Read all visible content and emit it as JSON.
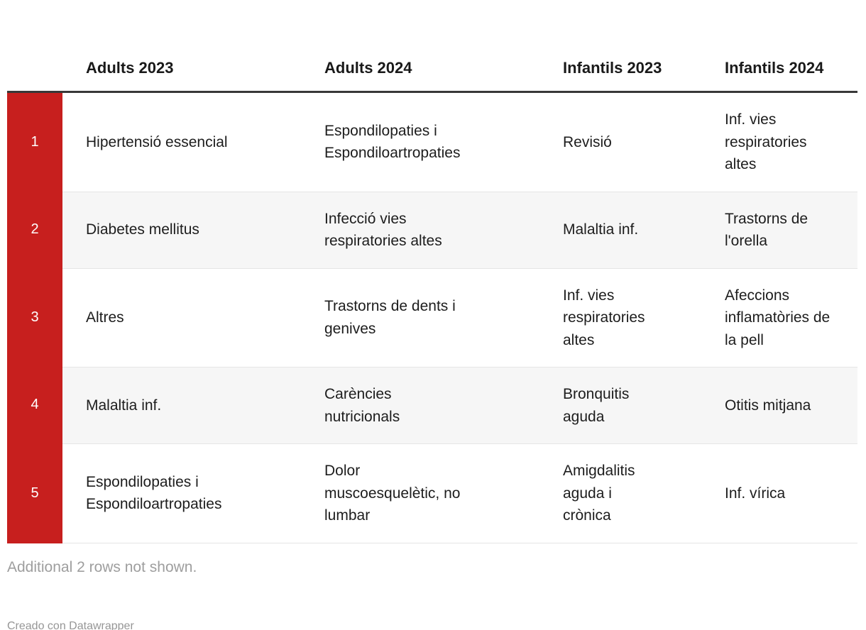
{
  "chart_data": {
    "type": "table",
    "columns": [
      "",
      "Adults 2023",
      "Adults 2024",
      "Infantils 2023",
      "Infantils 2024"
    ],
    "rows": [
      {
        "rank": "1",
        "cells": [
          "Hipertensió essencial",
          "Espondilopaties i Espondiloartropaties",
          "Revisió",
          "Inf. vies respiratories altes"
        ]
      },
      {
        "rank": "2",
        "cells": [
          "Diabetes mellitus",
          "Infecció vies respiratories altes",
          "Malaltia inf.",
          "Trastorns de l'orella"
        ]
      },
      {
        "rank": "3",
        "cells": [
          "Altres",
          "Trastorns de dents i genives",
          "Inf. vies respiratories altes",
          "Afeccions inflamatòries de la pell"
        ]
      },
      {
        "rank": "4",
        "cells": [
          "Malaltia inf.",
          "Carències nutricionals",
          "Bronquitis aguda",
          "Otitis mitjana"
        ]
      },
      {
        "rank": "5",
        "cells": [
          "Espondilopaties i Espondiloartropaties",
          "Dolor muscoesquelètic, no lumbar",
          "Amigdalitis aguda i crònica",
          "Inf. vírica"
        ]
      }
    ],
    "title": "",
    "legend_position": "none",
    "grid": "row-dividers"
  },
  "footer": {
    "note": "Additional 2 rows not shown.",
    "credit": "Creado con Datawrapper"
  },
  "colors": {
    "accent_red": "#c71f1e",
    "header_rule": "#383838",
    "row_stripe": "#f6f6f6",
    "row_divider": "#e5e5e5",
    "text": "#1d1d1d",
    "muted_text": "#9e9e9e"
  }
}
